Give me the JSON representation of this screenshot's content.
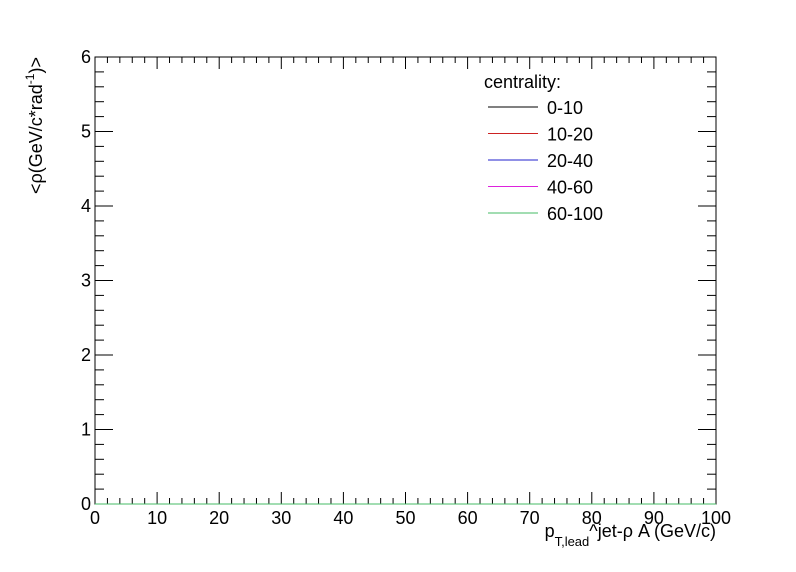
{
  "chart_data": {
    "type": "line",
    "xlabel_main": "p",
    "xlabel_sub": "T,lead",
    "xlabel_rest": "^jet-ρ A (GeV/c)",
    "ylabel_main": "<ρ(GeV/c*rad",
    "ylabel_sup": "-1",
    "ylabel_end": ")>",
    "xlim": [
      0,
      100
    ],
    "ylim": [
      0,
      6
    ],
    "x_ticks": [
      "0",
      "10",
      "20",
      "30",
      "40",
      "50",
      "60",
      "70",
      "80",
      "90",
      "100"
    ],
    "y_ticks": [
      "0",
      "1",
      "2",
      "3",
      "4",
      "5",
      "6"
    ],
    "grid": false,
    "legend_title": "centrality:",
    "legend_position": "top-right",
    "series": [
      {
        "name": "0-10",
        "color": "#000000",
        "x": [
          0,
          100
        ],
        "y": [
          0,
          0
        ]
      },
      {
        "name": "10-20",
        "color": "#cc2222",
        "x": [
          0,
          100
        ],
        "y": [
          0,
          0
        ]
      },
      {
        "name": "20-40",
        "color": "#2222cc",
        "x": [
          0,
          100
        ],
        "y": [
          0,
          0
        ]
      },
      {
        "name": "40-60",
        "color": "#dd22dd",
        "x": [
          0,
          100
        ],
        "y": [
          0,
          0
        ]
      },
      {
        "name": "60-100",
        "color": "#44bb66",
        "x": [
          0,
          100
        ],
        "y": [
          0,
          0
        ]
      }
    ]
  }
}
